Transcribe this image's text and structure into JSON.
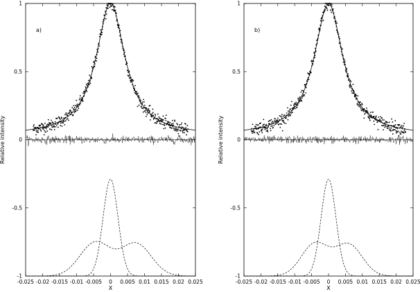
{
  "chart_data": [
    {
      "type": "scatter",
      "panel_label": "a)",
      "xlabel": "X",
      "ylabel": "Relative intensity",
      "xlim": [
        -0.025,
        0.025
      ],
      "ylim": [
        -1,
        1
      ],
      "xticks": [
        "-0.025",
        "-0.02",
        "-0.015",
        "-0.01",
        "-0.005",
        "0",
        "0.005",
        "0.01",
        "0.015",
        "0.02",
        "0.025"
      ],
      "xtick_values": [
        -0.025,
        -0.02,
        -0.015,
        -0.01,
        -0.005,
        0,
        0.005,
        0.01,
        0.015,
        0.02,
        0.025
      ],
      "yticks": [
        "-1",
        "-0.5",
        "0",
        "0.5",
        "1"
      ],
      "ytick_values": [
        -1,
        -0.5,
        0,
        0.5,
        1
      ],
      "series": [
        {
          "style": "points",
          "model": "lorentzian",
          "center": 0.0,
          "hwhm": 0.0052,
          "amplitude": 1.0,
          "baseline": 0.03,
          "x_range": [
            -0.0228,
            0.0228
          ]
        },
        {
          "style": "solid-fit",
          "model": "lorentzian",
          "center": 0.0,
          "hwhm": 0.0052,
          "amplitude": 1.0,
          "baseline": 0.03
        },
        {
          "style": "residual",
          "noise_amplitude": 0.04
        },
        {
          "style": "dashed",
          "model": "gaussian",
          "center": 0.0,
          "sigma": 0.0022,
          "peak": -0.29,
          "base": -1.0
        },
        {
          "style": "dashed",
          "model": "double-gaussian",
          "centers": [
            -0.0045,
            0.0075
          ],
          "sigma": 0.0045,
          "peaks": [
            -0.71,
            -0.72
          ],
          "base": -1.0
        }
      ]
    },
    {
      "type": "scatter",
      "panel_label": "b)",
      "xlabel": "X",
      "ylabel": "Relative intensity",
      "xlim": [
        -0.025,
        0.025
      ],
      "ylim": [
        -1,
        1
      ],
      "xticks": [
        "-0.025",
        "-0.02",
        "-0.015",
        "-0.01",
        "-0.005",
        "0",
        "0.005",
        "0.01",
        "0.015",
        "0.02",
        "0.025"
      ],
      "xtick_values": [
        -0.025,
        -0.02,
        -0.015,
        -0.01,
        -0.005,
        0,
        0.005,
        0.01,
        0.015,
        0.02,
        0.025
      ],
      "yticks": [
        "-1",
        "-0.5",
        "0",
        "0.5",
        "1"
      ],
      "ytick_values": [
        -1,
        -0.5,
        0,
        0.5,
        1
      ],
      "series": [
        {
          "style": "points",
          "model": "lorentzian",
          "center": 0.0,
          "hwhm": 0.0052,
          "amplitude": 1.0,
          "baseline": 0.03,
          "x_range": [
            -0.0228,
            0.0228
          ]
        },
        {
          "style": "solid-fit",
          "model": "lorentzian",
          "center": 0.0,
          "hwhm": 0.0052,
          "amplitude": 1.0,
          "baseline": 0.03
        },
        {
          "style": "residual",
          "noise_amplitude": 0.04
        },
        {
          "style": "dashed",
          "model": "gaussian",
          "center": 0.0,
          "sigma": 0.0022,
          "peak": -0.29,
          "base": -1.0
        },
        {
          "style": "dashed",
          "model": "double-gaussian",
          "centers": [
            -0.004,
            0.006
          ],
          "sigma": 0.004,
          "peaks": [
            -0.72,
            -0.73
          ],
          "base": -1.0
        }
      ]
    }
  ]
}
